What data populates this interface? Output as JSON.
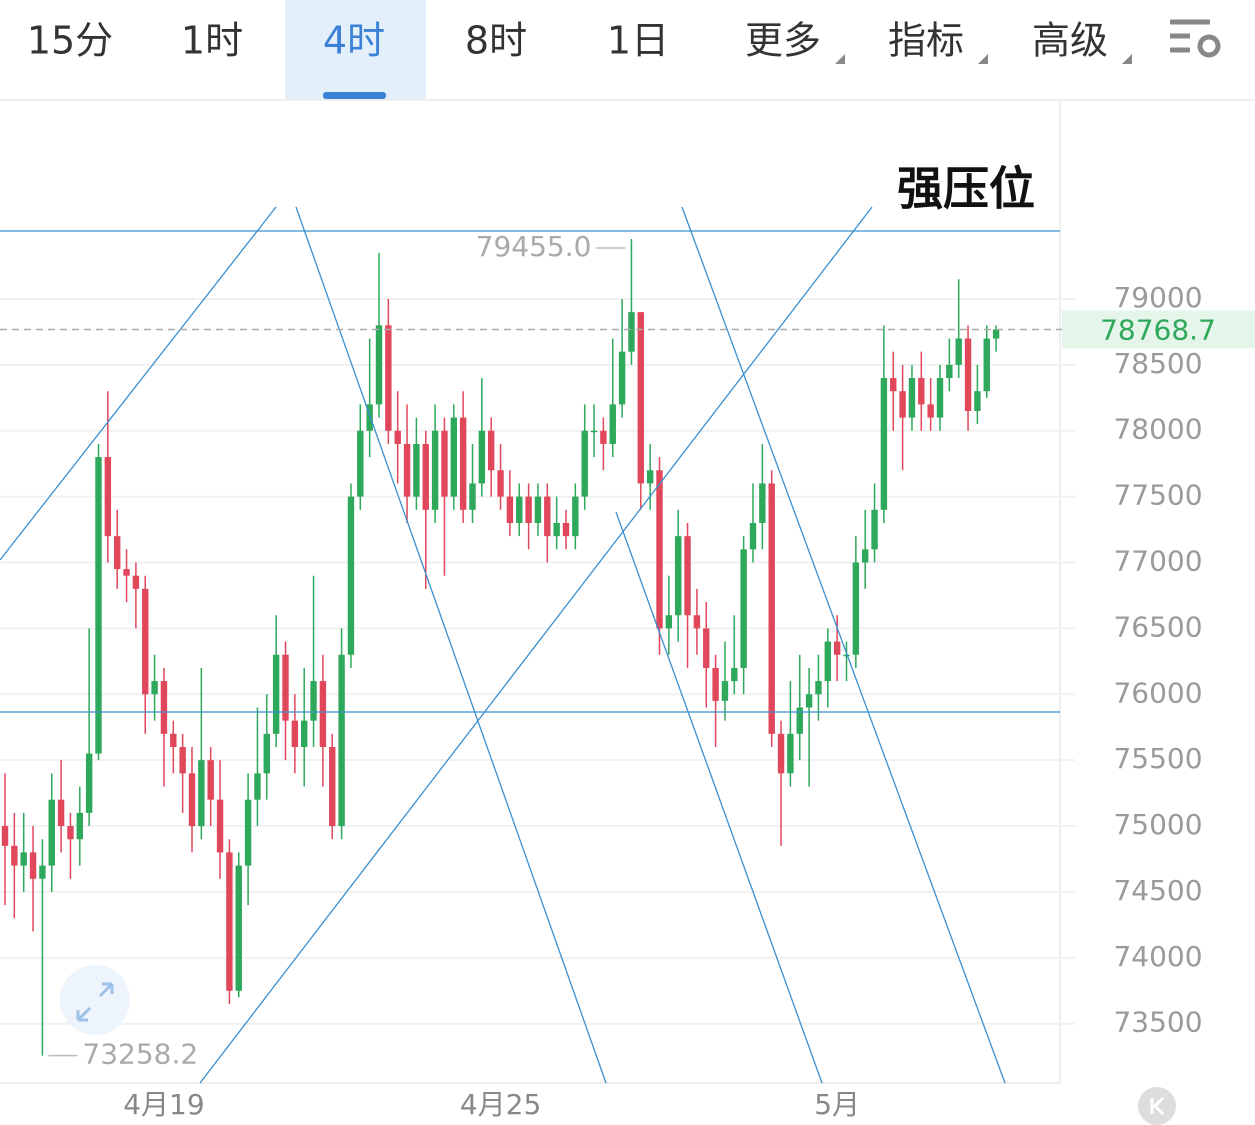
{
  "tabs": [
    "15分",
    "1时",
    "4时",
    "8时",
    "1日",
    "更多",
    "指标",
    "高级"
  ],
  "active_tab": 2,
  "chart_data": {
    "type": "candlestick",
    "annotation": "强压位",
    "high_label": "79455.0",
    "low_label": "73258.2",
    "last_price": 78768.7,
    "up_color": "#2ea85a",
    "down_color": "#e0475b",
    "grid": true,
    "ylim": [
      73050,
      80510
    ],
    "yticks": [
      73500,
      74000,
      74500,
      75000,
      75500,
      76000,
      76500,
      77000,
      77500,
      78000,
      78500,
      79000
    ],
    "categories": [
      null,
      null,
      null,
      null,
      null,
      null,
      null,
      null,
      null,
      null,
      null,
      null,
      null,
      null,
      null,
      null,
      null,
      "4月19",
      null,
      null,
      null,
      null,
      null,
      null,
      null,
      null,
      null,
      null,
      null,
      null,
      null,
      null,
      null,
      null,
      null,
      null,
      null,
      null,
      null,
      null,
      null,
      null,
      null,
      null,
      null,
      null,
      null,
      null,
      null,
      null,
      null,
      null,
      null,
      "4月25",
      null,
      null,
      null,
      null,
      null,
      null,
      null,
      null,
      null,
      null,
      null,
      null,
      null,
      null,
      null,
      null,
      null,
      null,
      null,
      null,
      null,
      null,
      null,
      null,
      null,
      null,
      null,
      null,
      null,
      null,
      null,
      null,
      null,
      null,
      null,
      "5月",
      null,
      null,
      null,
      null,
      null,
      null,
      null,
      null,
      null,
      null,
      null,
      null,
      null,
      null,
      null,
      null,
      null
    ],
    "open": [
      75000,
      74850,
      74700,
      74800,
      74600,
      74700,
      75200,
      75000,
      74900,
      75100,
      75550,
      77800,
      77200,
      76950,
      76900,
      76800,
      76000,
      76100,
      75700,
      75600,
      75400,
      75000,
      75500,
      75200,
      74800,
      73750,
      74700,
      75200,
      75400,
      75700,
      76300,
      75800,
      75600,
      75800,
      76100,
      75600,
      75000,
      76300,
      77500,
      78000,
      78200,
      78800,
      78000,
      77900,
      77500,
      77900,
      77400,
      78000,
      77500,
      78100,
      77400,
      77600,
      78000,
      77700,
      77500,
      77300,
      77500,
      77300,
      77500,
      77200,
      77300,
      77200,
      77500,
      78000,
      78000,
      77900,
      78200,
      78600,
      78900,
      77600,
      77700,
      76500,
      76600,
      77200,
      76600,
      76500,
      76200,
      75950,
      76100,
      76200,
      77100,
      77300,
      77600,
      75700,
      75400,
      75700,
      75900,
      76000,
      76100,
      76400,
      76300,
      76300,
      77000,
      77100,
      77400,
      78400,
      78300,
      78100,
      78400,
      78200,
      78100,
      78400,
      78500,
      78700,
      78150,
      78300,
      78700
    ],
    "high": [
      75400,
      75100,
      75100,
      75000,
      74900,
      75400,
      75500,
      75100,
      75300,
      76500,
      77900,
      78300,
      77400,
      77100,
      77000,
      76900,
      76300,
      76200,
      75800,
      75700,
      75600,
      76200,
      75600,
      75500,
      74900,
      74800,
      75400,
      75900,
      76000,
      76600,
      76400,
      76000,
      76200,
      76900,
      76300,
      75700,
      76500,
      77600,
      78200,
      78700,
      79350,
      79000,
      78300,
      78200,
      78100,
      78000,
      78200,
      78100,
      78200,
      78300,
      77900,
      78400,
      78100,
      77900,
      77700,
      77600,
      77600,
      77600,
      77600,
      77500,
      77400,
      77600,
      78200,
      78200,
      78100,
      78700,
      79000,
      79455.0,
      78900,
      77900,
      77800,
      76900,
      77400,
      77300,
      76800,
      76700,
      76300,
      76400,
      76600,
      77200,
      77600,
      77900,
      77700,
      75800,
      76100,
      76300,
      76200,
      76300,
      76500,
      76600,
      76400,
      77200,
      77400,
      77600,
      78800,
      78600,
      78500,
      78500,
      78600,
      78400,
      78500,
      78700,
      79150,
      78800,
      78500,
      78800,
      78800
    ],
    "low": [
      74400,
      74300,
      74500,
      74200,
      73258.2,
      74500,
      74800,
      74600,
      74700,
      75000,
      75500,
      77000,
      76800,
      76700,
      76500,
      75700,
      75800,
      75300,
      75400,
      75100,
      74800,
      74900,
      75000,
      74600,
      73650,
      73700,
      74400,
      75000,
      75200,
      75600,
      75500,
      75400,
      75300,
      75600,
      75300,
      74900,
      74900,
      76200,
      77400,
      77800,
      78100,
      77900,
      77600,
      77300,
      77400,
      76800,
      77300,
      76900,
      77400,
      77300,
      77300,
      77500,
      77500,
      77400,
      77200,
      77200,
      77100,
      77200,
      77000,
      77100,
      77100,
      77100,
      77400,
      77800,
      77700,
      77800,
      78100,
      78500,
      77400,
      77400,
      76300,
      76300,
      76400,
      76200,
      76300,
      75900,
      75600,
      75800,
      76000,
      76000,
      77000,
      77100,
      75600,
      74850,
      75300,
      75500,
      75300,
      75800,
      75900,
      76100,
      76100,
      76200,
      76800,
      77000,
      77300,
      78000,
      77700,
      78000,
      78000,
      78000,
      78000,
      78300,
      78400,
      78000,
      78050,
      78250,
      78600
    ],
    "close": [
      74850,
      74700,
      74800,
      74600,
      74700,
      75200,
      75000,
      74900,
      75100,
      75550,
      77800,
      77200,
      76950,
      76900,
      76800,
      76000,
      76100,
      75700,
      75600,
      75400,
      75000,
      75500,
      75200,
      74800,
      73750,
      74700,
      75200,
      75400,
      75700,
      76300,
      75800,
      75600,
      75800,
      76100,
      75600,
      75000,
      76300,
      77500,
      78000,
      78200,
      78800,
      78000,
      77900,
      77500,
      77900,
      77400,
      78000,
      77500,
      78100,
      77400,
      77600,
      78000,
      77700,
      77500,
      77300,
      77500,
      77300,
      77500,
      77200,
      77300,
      77200,
      77500,
      78000,
      78000,
      77900,
      78200,
      78600,
      78900,
      77600,
      77700,
      76500,
      76600,
      77200,
      76600,
      76500,
      76200,
      75950,
      76100,
      76200,
      77100,
      77300,
      77600,
      75700,
      75400,
      75700,
      75900,
      76000,
      76100,
      76400,
      76300,
      76300,
      77000,
      77100,
      77400,
      78400,
      78300,
      78100,
      78400,
      78200,
      78100,
      78400,
      78500,
      78700,
      78150,
      78300,
      78700,
      78768.7
    ]
  }
}
